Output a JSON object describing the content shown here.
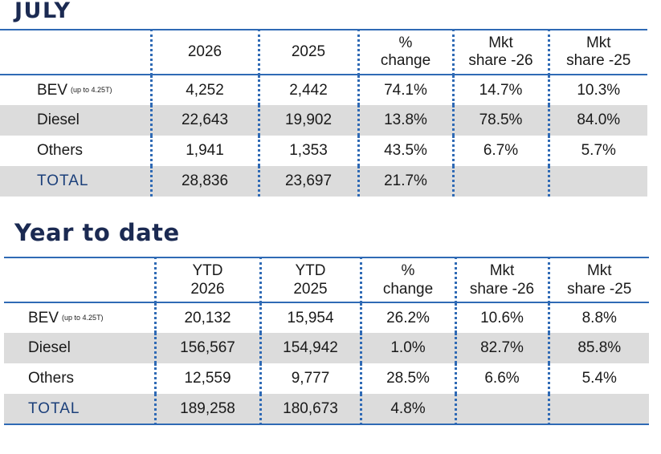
{
  "july": {
    "title": "JULY",
    "headers": [
      {
        "line1": "2026",
        "line2": ""
      },
      {
        "line1": "2025",
        "line2": ""
      },
      {
        "line1": "%",
        "line2": "change"
      },
      {
        "line1": "Mkt",
        "line2": "share -26"
      },
      {
        "line1": "Mkt",
        "line2": "share -25"
      }
    ],
    "rows": [
      {
        "label": "BEV",
        "note": "(up to 4.25T)",
        "cells": [
          "4,252",
          "2,442",
          "74.1%",
          "14.7%",
          "10.3%"
        ]
      },
      {
        "label": "Diesel",
        "note": "",
        "cells": [
          "22,643",
          "19,902",
          "13.8%",
          "78.5%",
          "84.0%"
        ]
      },
      {
        "label": "Others",
        "note": "",
        "cells": [
          "1,941",
          "1,353",
          "43.5%",
          "6.7%",
          "5.7%"
        ]
      },
      {
        "label": "TOTAL",
        "note": "",
        "cells": [
          "28,836",
          "23,697",
          "21.7%",
          "",
          ""
        ]
      }
    ]
  },
  "ytd": {
    "title": "Year to date",
    "headers": [
      {
        "line1": "YTD",
        "line2": "2026"
      },
      {
        "line1": "YTD",
        "line2": "2025"
      },
      {
        "line1": "%",
        "line2": "change"
      },
      {
        "line1": "Mkt",
        "line2": "share -26"
      },
      {
        "line1": "Mkt",
        "line2": "share -25"
      }
    ],
    "rows": [
      {
        "label": "BEV",
        "note": "(up to 4.25T)",
        "cells": [
          "20,132",
          "15,954",
          "26.2%",
          "10.6%",
          "8.8%"
        ]
      },
      {
        "label": "Diesel",
        "note": "",
        "cells": [
          "156,567",
          "154,942",
          "1.0%",
          "82.7%",
          "85.8%"
        ]
      },
      {
        "label": "Others",
        "note": "",
        "cells": [
          "12,559",
          "9,777",
          "28.5%",
          "6.6%",
          "5.4%"
        ]
      },
      {
        "label": "TOTAL",
        "note": "",
        "cells": [
          "189,258",
          "180,673",
          "4.8%",
          "",
          ""
        ]
      }
    ]
  },
  "colors": {
    "title": "#1b2a52",
    "rule": "#2f6ab5",
    "shade": "#dcdcdc",
    "total_label": "#1b3f7a"
  }
}
